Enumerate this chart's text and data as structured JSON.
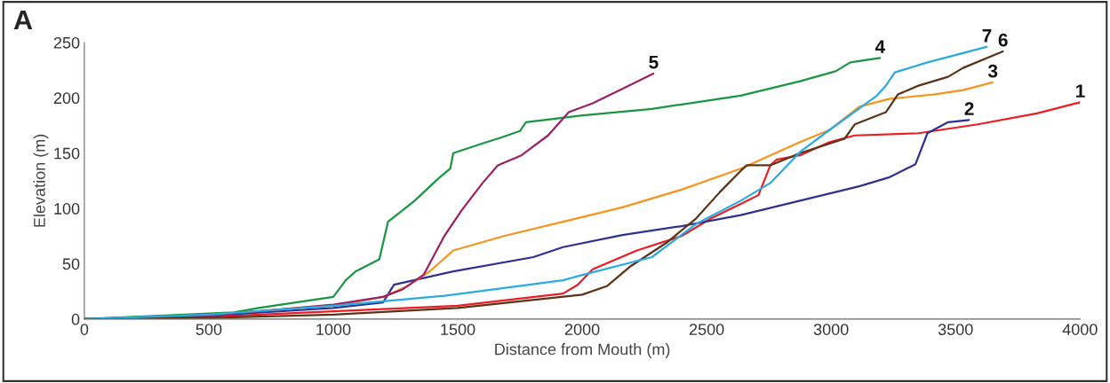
{
  "chart_data": {
    "type": "line",
    "title": "A",
    "xlabel": "Distance from Mouth (m)",
    "ylabel": "Elevation (m)",
    "xlim": [
      0,
      4000
    ],
    "ylim": [
      0,
      250
    ],
    "xticks": [
      0,
      500,
      1000,
      1500,
      2000,
      2500,
      3000,
      3500,
      4000
    ],
    "yticks": [
      0,
      50,
      100,
      150,
      200,
      250
    ],
    "grid": false,
    "legend": false,
    "line_style": "solid",
    "series": [
      {
        "name": "1",
        "color": "#ed1c24",
        "x": [
          0,
          500,
          1000,
          1500,
          1923,
          1982,
          2042,
          2220,
          2399,
          2518,
          2637,
          2708,
          2756,
          2780,
          2875,
          2994,
          3095,
          3351,
          3589,
          3827,
          4000
        ],
        "values": [
          0,
          2,
          7,
          12,
          23,
          31,
          45,
          62,
          75,
          91,
          104,
          112,
          139,
          144,
          148,
          160,
          166,
          168,
          176,
          186,
          196
        ]
      },
      {
        "name": "2",
        "color": "#2e3192",
        "x": [
          0,
          500,
          1000,
          1200,
          1244,
          1482,
          1804,
          1923,
          2161,
          2399,
          2637,
          2875,
          3113,
          3232,
          3339,
          3387,
          3470,
          3554
        ],
        "values": [
          0,
          3,
          10,
          15,
          31,
          43,
          56,
          65,
          76,
          84,
          94,
          107,
          120,
          128,
          140,
          168,
          178,
          180
        ]
      },
      {
        "name": "3",
        "color": "#f7941d",
        "x": [
          0,
          500,
          1000,
          1200,
          1300,
          1387,
          1482,
          1685,
          1923,
          2161,
          2399,
          2637,
          2875,
          2994,
          3113,
          3232,
          3411,
          3530,
          3649
        ],
        "values": [
          0,
          4,
          12,
          20,
          30,
          43,
          62,
          75,
          88,
          101,
          117,
          136,
          160,
          171,
          192,
          199,
          203,
          207,
          214
        ]
      },
      {
        "name": "4",
        "color": "#1a9641",
        "x": [
          0,
          500,
          600,
          700,
          1000,
          1050,
          1089,
          1185,
          1220,
          1327,
          1422,
          1470,
          1482,
          1589,
          1673,
          1750,
          1774,
          1994,
          2280,
          2637,
          2875,
          3018,
          3077,
          3196
        ],
        "values": [
          0,
          5,
          6,
          10,
          20,
          35,
          43,
          54,
          88,
          107,
          127,
          136,
          150,
          158,
          164,
          170,
          178,
          184,
          190,
          202,
          215,
          224,
          232,
          236
        ]
      },
      {
        "name": "5",
        "color": "#9e1f63",
        "x": [
          0,
          500,
          1000,
          1200,
          1280,
          1363,
          1446,
          1518,
          1600,
          1661,
          1756,
          1863,
          1946,
          2042,
          2161,
          2286
        ],
        "values": [
          0,
          3,
          13,
          20,
          27,
          40,
          75,
          99,
          123,
          139,
          148,
          166,
          187,
          195,
          208,
          222
        ]
      },
      {
        "name": "6",
        "color": "#5c3317",
        "x": [
          0,
          500,
          1000,
          1500,
          2000,
          2101,
          2196,
          2339,
          2458,
          2554,
          2637,
          2661,
          2756,
          2875,
          3054,
          3095,
          3220,
          3268,
          3351,
          3470,
          3530,
          3690
        ],
        "values": [
          0,
          1,
          4,
          10,
          22,
          30,
          48,
          69,
          91,
          115,
          134,
          139,
          139,
          150,
          163,
          176,
          187,
          203,
          211,
          219,
          227,
          242
        ]
      },
      {
        "name": "7",
        "color": "#29abe2",
        "x": [
          0,
          500,
          1000,
          1446,
          1923,
          1970,
          2280,
          2458,
          2637,
          2756,
          2875,
          2994,
          3184,
          3220,
          3256,
          3387,
          3625
        ],
        "values": [
          0,
          4,
          12,
          21,
          35,
          38,
          56,
          86,
          107,
          123,
          151,
          171,
          202,
          211,
          223,
          232,
          246
        ]
      }
    ]
  }
}
